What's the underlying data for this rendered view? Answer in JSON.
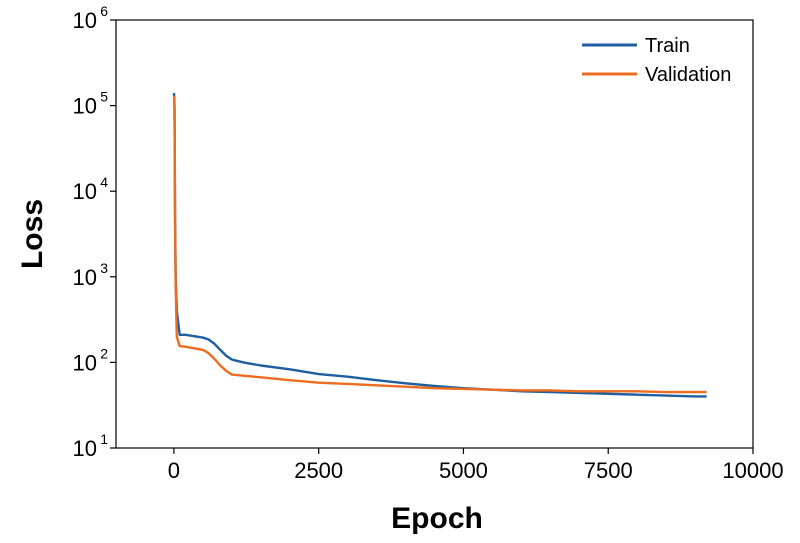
{
  "chart_data": {
    "type": "line",
    "xlabel": "Epoch",
    "ylabel": "Loss",
    "xlim": [
      -1000,
      10000
    ],
    "ylim": [
      10,
      1000000
    ],
    "yscale": "log",
    "x_ticks": [
      "0",
      "2500",
      "5000",
      "7500",
      "10000"
    ],
    "y_ticks": [
      {
        "base": "10",
        "exp": "1"
      },
      {
        "base": "10",
        "exp": "2"
      },
      {
        "base": "10",
        "exp": "3"
      },
      {
        "base": "10",
        "exp": "4"
      },
      {
        "base": "10",
        "exp": "5"
      },
      {
        "base": "10",
        "exp": "6"
      }
    ],
    "grid": false,
    "legend_position": "top-right",
    "series": [
      {
        "name": "Train",
        "color": "#1f5fa0",
        "x": [
          0,
          5,
          10,
          15,
          20,
          30,
          50,
          100,
          200,
          300,
          400,
          500,
          600,
          700,
          800,
          900,
          1000,
          1200,
          1500,
          2000,
          2500,
          3000,
          3500,
          4000,
          4500,
          5000,
          5500,
          6000,
          6500,
          7000,
          7500,
          8000,
          8500,
          9000,
          9200
        ],
        "y": [
          140000,
          130000,
          100000,
          30000,
          5000,
          1000,
          400,
          210,
          210,
          205,
          200,
          195,
          185,
          165,
          140,
          120,
          108,
          100,
          92,
          83,
          73,
          68,
          62,
          57,
          53,
          50,
          48,
          46,
          45,
          44,
          43,
          42,
          41,
          40,
          40
        ]
      },
      {
        "name": "Validation",
        "color": "#ee6c1f",
        "x": [
          0,
          5,
          10,
          15,
          20,
          30,
          50,
          100,
          200,
          300,
          400,
          500,
          600,
          700,
          800,
          900,
          1000,
          1200,
          1500,
          2000,
          2500,
          3000,
          3500,
          4000,
          4500,
          5000,
          5500,
          6000,
          6500,
          7000,
          7500,
          8000,
          8500,
          9000,
          9200
        ],
        "y": [
          130000,
          120000,
          90000,
          25000,
          4000,
          800,
          200,
          155,
          152,
          148,
          144,
          140,
          128,
          110,
          92,
          80,
          72,
          70,
          67,
          62,
          58,
          56,
          54,
          52,
          50,
          49,
          48,
          47,
          47,
          46,
          46,
          46,
          45,
          45,
          45
        ]
      }
    ]
  }
}
